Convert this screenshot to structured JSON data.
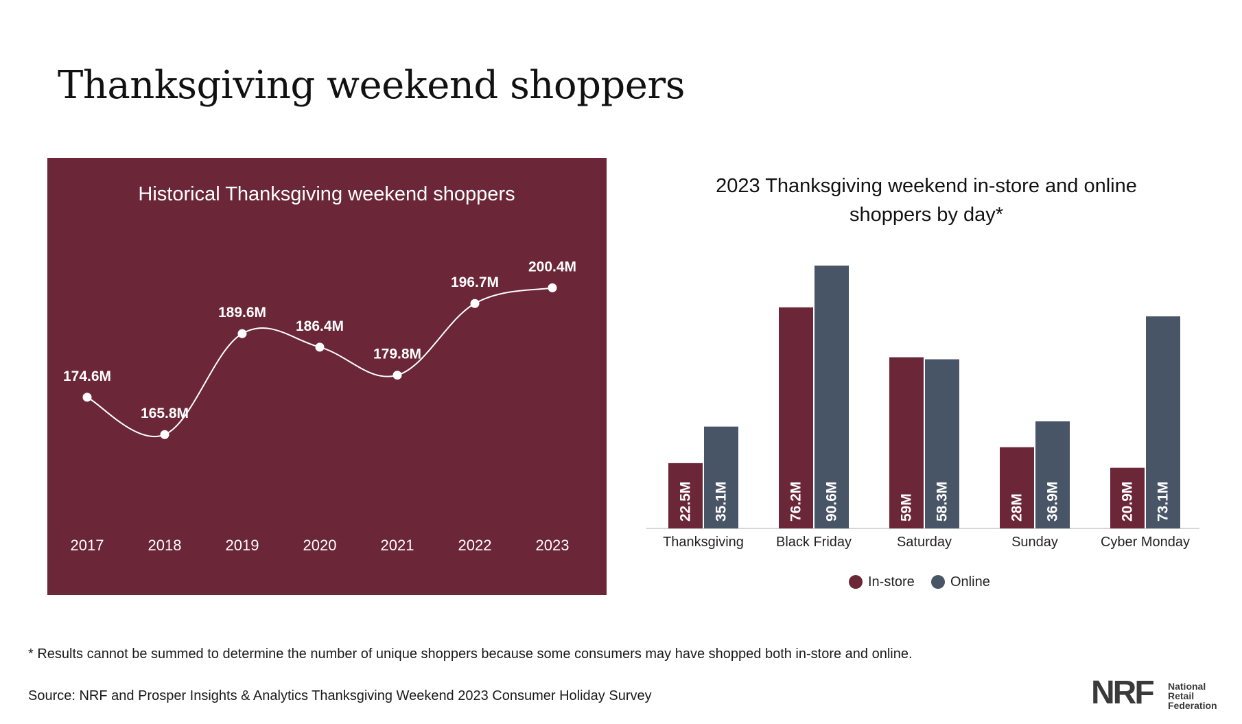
{
  "title": "Thanksgiving weekend shoppers",
  "colors": {
    "panel": "#6b2637",
    "in_store": "#6b2637",
    "online": "#485566",
    "line": "#ffffff"
  },
  "chart_data": [
    {
      "type": "line",
      "title": "Historical Thanksgiving weekend shoppers",
      "x": [
        "2017",
        "2018",
        "2019",
        "2020",
        "2021",
        "2022",
        "2023"
      ],
      "values": [
        174.6,
        165.8,
        189.6,
        186.4,
        179.8,
        196.7,
        200.4
      ],
      "data_labels": [
        "174.6M",
        "165.8M",
        "189.6M",
        "186.4M",
        "179.8M",
        "196.7M",
        "200.4M"
      ],
      "ylim": [
        155,
        210
      ],
      "grid": false,
      "xlabel": "",
      "ylabel": ""
    },
    {
      "type": "bar",
      "title_lines": [
        "2023 Thanksgiving weekend in-store and online",
        "shoppers by day*"
      ],
      "categories": [
        "Thanksgiving",
        "Black Friday",
        "Saturday",
        "Sunday",
        "Cyber Monday"
      ],
      "series": [
        {
          "name": "In-store",
          "values": [
            22.5,
            76.2,
            59,
            28,
            20.9
          ],
          "labels": [
            "22.5M",
            "76.2M",
            "59M",
            "28M",
            "20.9M"
          ]
        },
        {
          "name": "Online",
          "values": [
            35.1,
            90.6,
            58.3,
            36.9,
            73.1
          ],
          "labels": [
            "35.1M",
            "90.6M",
            "58.3M",
            "36.9M",
            "73.1M"
          ]
        }
      ],
      "ylim": [
        0,
        100
      ],
      "legend": "bottom",
      "grid": false
    }
  ],
  "footnote": "* Results cannot be summed to determine the number of unique shoppers because some consumers may have shopped both in-store and online.",
  "source": "Source: NRF and Prosper Insights & Analytics Thanksgiving Weekend 2023 Consumer Holiday Survey",
  "logo": {
    "mark": "NRF",
    "name_lines": [
      "National",
      "Retail",
      "Federation"
    ]
  }
}
